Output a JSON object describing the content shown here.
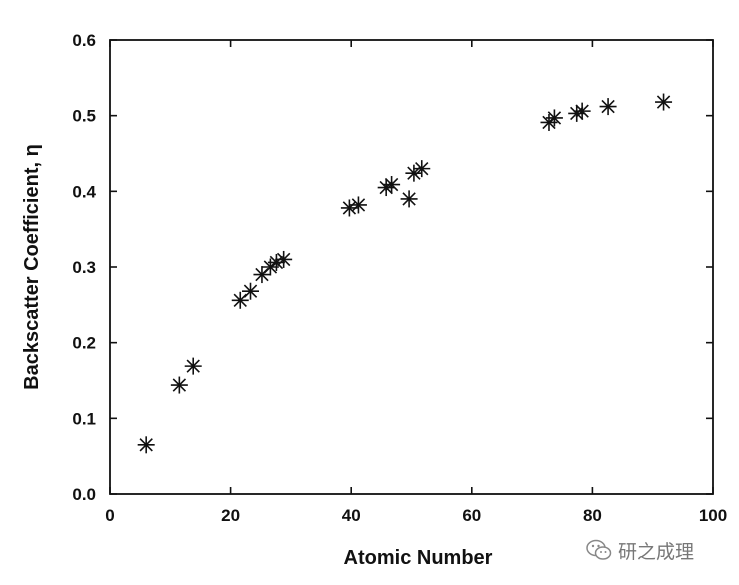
{
  "chart_data": {
    "type": "scatter",
    "title": "",
    "xlabel": "Atomic Number",
    "ylabel": "Backscatter Coefficient, η",
    "xlim": [
      0,
      100
    ],
    "ylim": [
      0,
      0.6
    ],
    "xticks": [
      "0",
      "20",
      "40",
      "60",
      "80",
      "100"
    ],
    "yticks": [
      "0.0",
      "0.1",
      "0.2",
      "0.3",
      "0.4",
      "0.5",
      "0.6"
    ],
    "grid": false,
    "legend": "none",
    "marker": "asterisk",
    "series": [
      {
        "points": [
          {
            "x": 6,
            "y": 0.065
          },
          {
            "x": 11.5,
            "y": 0.144
          },
          {
            "x": 13.8,
            "y": 0.169
          },
          {
            "x": 21.6,
            "y": 0.256
          },
          {
            "x": 23.3,
            "y": 0.268
          },
          {
            "x": 25.2,
            "y": 0.29
          },
          {
            "x": 26.6,
            "y": 0.3
          },
          {
            "x": 27.6,
            "y": 0.306
          },
          {
            "x": 28.8,
            "y": 0.31
          },
          {
            "x": 39.7,
            "y": 0.378
          },
          {
            "x": 41.2,
            "y": 0.382
          },
          {
            "x": 45.8,
            "y": 0.405
          },
          {
            "x": 46.7,
            "y": 0.409
          },
          {
            "x": 49.6,
            "y": 0.39
          },
          {
            "x": 50.4,
            "y": 0.424
          },
          {
            "x": 51.7,
            "y": 0.43
          },
          {
            "x": 72.8,
            "y": 0.491
          },
          {
            "x": 73.7,
            "y": 0.497
          },
          {
            "x": 77.4,
            "y": 0.503
          },
          {
            "x": 78.3,
            "y": 0.506
          },
          {
            "x": 82.6,
            "y": 0.512
          },
          {
            "x": 91.8,
            "y": 0.518
          }
        ]
      }
    ]
  },
  "watermark": {
    "text": "研之成理",
    "icon": "wechat-icon"
  }
}
